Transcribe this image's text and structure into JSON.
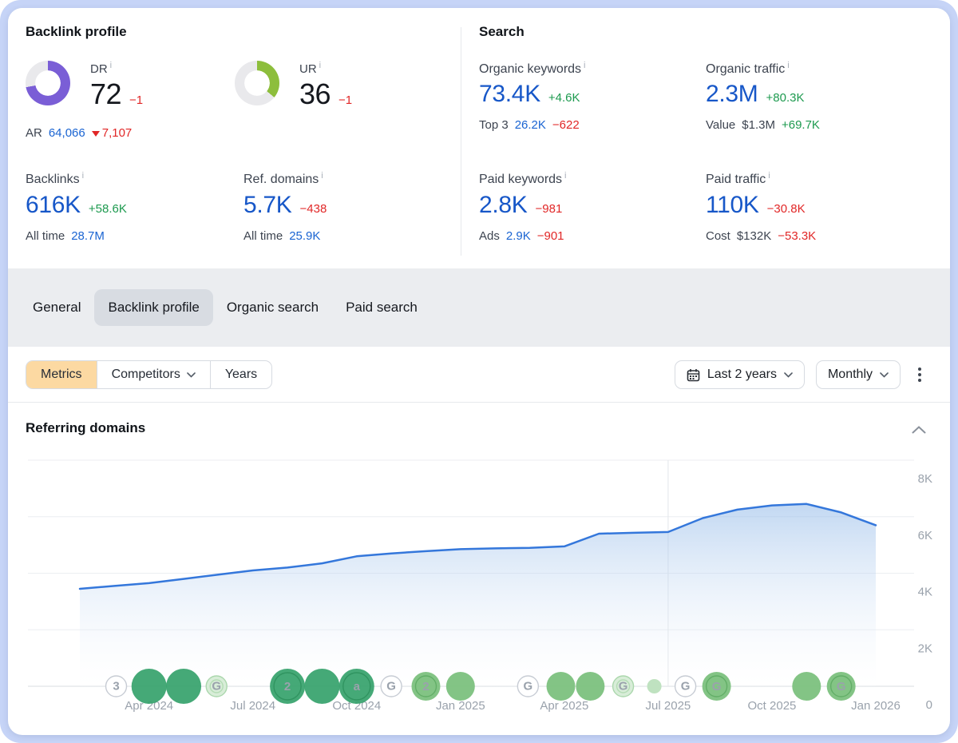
{
  "icons": {
    "info_glyph": "i"
  },
  "backlink_profile": {
    "title": "Backlink profile",
    "dr": {
      "label": "DR",
      "value": "72",
      "delta": "−1",
      "donut": {
        "percent": 72,
        "color": "#7a5ed6",
        "track": "#e9e9ec"
      }
    },
    "ur": {
      "label": "UR",
      "value": "36",
      "delta": "−1",
      "donut": {
        "percent": 36,
        "color": "#8dbe3c",
        "track": "#e9e9ec"
      }
    },
    "ar": {
      "label": "AR",
      "value": "64,066",
      "delta": "7,107"
    },
    "backlinks": {
      "label": "Backlinks",
      "value": "616K",
      "delta": "+58.6K",
      "sub_label": "All time",
      "sub_value": "28.7M"
    },
    "ref_domains": {
      "label": "Ref. domains",
      "value": "5.7K",
      "delta": "−438",
      "sub_label": "All time",
      "sub_value": "25.9K"
    }
  },
  "search": {
    "title": "Search",
    "organic_keywords": {
      "label": "Organic keywords",
      "value": "73.4K",
      "delta": "+4.6K",
      "sub_label": "Top 3",
      "sub_value": "26.2K",
      "sub_delta": "−622"
    },
    "organic_traffic": {
      "label": "Organic traffic",
      "value": "2.3M",
      "delta": "+80.3K",
      "sub_label": "Value",
      "sub_value": "$1.3M",
      "sub_delta": "+69.7K"
    },
    "paid_keywords": {
      "label": "Paid keywords",
      "value": "2.8K",
      "delta": "−981",
      "sub_label": "Ads",
      "sub_value": "2.9K",
      "sub_delta": "−901"
    },
    "paid_traffic": {
      "label": "Paid traffic",
      "value": "110K",
      "delta": "−30.8K",
      "sub_label": "Cost",
      "sub_value": "$132K",
      "sub_delta": "−53.3K"
    }
  },
  "tabs": {
    "items": [
      {
        "label": "General",
        "active": false
      },
      {
        "label": "Backlink profile",
        "active": true
      },
      {
        "label": "Organic search",
        "active": false
      },
      {
        "label": "Paid search",
        "active": false
      }
    ]
  },
  "toolbar": {
    "metrics_label": "Metrics",
    "competitors_label": "Competitors",
    "years_label": "Years",
    "date_range_label": "Last 2 years",
    "granularity_label": "Monthly"
  },
  "section": {
    "title": "Referring domains"
  },
  "chart_data": {
    "type": "area",
    "title": "Referring domains",
    "x": [
      "Feb 2024",
      "Mar 2024",
      "Apr 2024",
      "May 2024",
      "Jun 2024",
      "Jul 2024",
      "Aug 2024",
      "Sep 2024",
      "Oct 2024",
      "Nov 2024",
      "Dec 2024",
      "Jan 2025",
      "Feb 2025",
      "Mar 2025",
      "Apr 2025",
      "May 2025",
      "Jun 2025",
      "Jul 2025",
      "Aug 2025",
      "Sep 2025",
      "Oct 2025",
      "Nov 2025",
      "Dec 2025",
      "Jan 2026"
    ],
    "values": [
      3450,
      3550,
      3650,
      3800,
      3950,
      4100,
      4200,
      4350,
      4600,
      4700,
      4780,
      4850,
      4880,
      4900,
      4950,
      5400,
      5430,
      5460,
      5950,
      6250,
      6400,
      6450,
      6150,
      5700
    ],
    "ylim": [
      0,
      8000
    ],
    "line_color": "#3477db",
    "area_top_color": "rgba(144,184,232,0.55)",
    "area_bottom_color": "rgba(255,255,255,0.10)",
    "x_ticks": [
      {
        "label": "Apr 2024",
        "i": 2
      },
      {
        "label": "Jul 2024",
        "i": 5
      },
      {
        "label": "Oct 2024",
        "i": 8
      },
      {
        "label": "Jan 2025",
        "i": 11
      },
      {
        "label": "Apr 2025",
        "i": 14
      },
      {
        "label": "Jul 2025",
        "i": 17
      },
      {
        "label": "Oct 2025",
        "i": 20
      },
      {
        "label": "Jan 2026",
        "i": 23
      }
    ],
    "y_ticks": [
      {
        "label": "8K",
        "v": 8000
      },
      {
        "label": "6K",
        "v": 6000
      },
      {
        "label": "4K",
        "v": 4000
      },
      {
        "label": "2K",
        "v": 2000
      },
      {
        "label": "0",
        "v": 0
      }
    ],
    "geometry": {
      "x0": 100,
      "x1": 1097,
      "y_base": 859,
      "y_top": 576,
      "y_max": 8000,
      "grid_x0": 35,
      "grid_x1": 1145,
      "vline_i": 17,
      "label_x": 1168,
      "label_dy": 28,
      "tick_y": 888
    },
    "event_styles": {
      "solid": {
        "fill": "#35a26b",
        "stroke": "none",
        "glyph": "#1e7347",
        "ring": "#2a8f5a",
        "opacity": 0.92
      },
      "light": {
        "fill": "#7cc17e",
        "stroke": "none",
        "glyph": "#3b8f43",
        "ring": "#5aa95f",
        "opacity": 0.95
      },
      "pale": {
        "fill": "#d8edd8",
        "stroke": "#abd7ad",
        "glyph": "#55a05a",
        "ring": "#abd7ad",
        "opacity": 1
      },
      "white": {
        "fill": "#ffffff",
        "stroke": "#c7ccd4",
        "glyph": "#6f7681",
        "ring": "#c7ccd4",
        "opacity": 1
      },
      "dotpale": {
        "fill": "#bfe2c0",
        "stroke": "none",
        "glyph": "#ffffff",
        "ring": "none",
        "opacity": 1
      }
    },
    "events": [
      {
        "t": 1.05,
        "size": "sm",
        "style": "white",
        "glyph": "3",
        "ring": false
      },
      {
        "t": 2.0,
        "size": "lg",
        "style": "solid",
        "glyph": "",
        "ring": false
      },
      {
        "t": 3.0,
        "size": "lg",
        "style": "solid",
        "glyph": "",
        "ring": false
      },
      {
        "t": 3.95,
        "size": "sm",
        "style": "pale",
        "glyph": "G",
        "ring": true
      },
      {
        "t": 6.0,
        "size": "lg",
        "style": "solid",
        "glyph": "2",
        "ring": true
      },
      {
        "t": 7.0,
        "size": "lg",
        "style": "solid",
        "glyph": "",
        "ring": false
      },
      {
        "t": 8.0,
        "size": "lg",
        "style": "solid",
        "glyph": "a",
        "ring": true
      },
      {
        "t": 9.0,
        "size": "sm",
        "style": "white",
        "glyph": "G",
        "ring": false
      },
      {
        "t": 10.0,
        "size": "md",
        "style": "light",
        "glyph": "2",
        "ring": true
      },
      {
        "t": 11.0,
        "size": "md",
        "style": "light",
        "glyph": "",
        "ring": false
      },
      {
        "t": 12.95,
        "size": "sm",
        "style": "white",
        "glyph": "G",
        "ring": false
      },
      {
        "t": 13.9,
        "size": "md",
        "style": "light",
        "glyph": "",
        "ring": false
      },
      {
        "t": 14.75,
        "size": "md",
        "style": "light",
        "glyph": "",
        "ring": false
      },
      {
        "t": 15.7,
        "size": "sm",
        "style": "pale",
        "glyph": "G",
        "ring": true
      },
      {
        "t": 16.6,
        "size": "dot",
        "style": "dotpale",
        "glyph": "",
        "ring": false
      },
      {
        "t": 17.5,
        "size": "sm",
        "style": "white",
        "glyph": "G",
        "ring": false
      },
      {
        "t": 18.4,
        "size": "md",
        "style": "light",
        "glyph": "G",
        "ring": true
      },
      {
        "t": 21.0,
        "size": "md",
        "style": "light",
        "glyph": "",
        "ring": false
      },
      {
        "t": 22.0,
        "size": "md",
        "style": "light",
        "glyph": "G",
        "ring": true
      }
    ]
  }
}
